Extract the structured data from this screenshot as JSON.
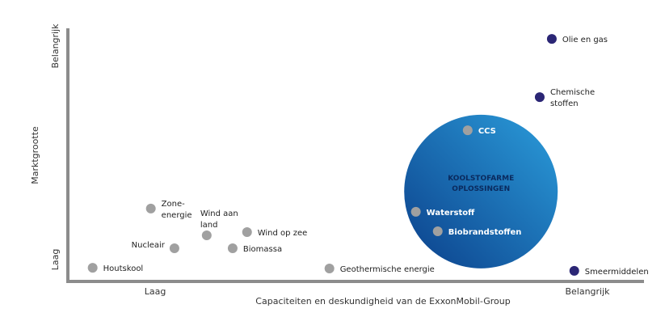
{
  "chart_data": {
    "type": "scatter",
    "title": "",
    "xlabel": "Capaciteiten en deskundigheid van de ExxonMobil-Group",
    "ylabel": "Marktgrootte",
    "x_ticks": {
      "low": "Laag",
      "high": "Belangrijk"
    },
    "y_ticks": {
      "low": "Laag",
      "high": "Belangrijk"
    },
    "xlim": [
      0,
      100
    ],
    "ylim": [
      0,
      100
    ],
    "grid": false,
    "colors": {
      "axis": "#8c8c8c",
      "gray_point": "#a0a0a0",
      "core_point": "#2b2675",
      "bubble_dark": "#0b3f8a",
      "bubble_light": "#2b9ddb",
      "bubble_text": "#0a2a5e",
      "text": "#333333"
    },
    "bubble": {
      "label_lines": [
        "KOOLSTOFARME",
        "OPLOSSINGEN"
      ],
      "cx": 71.7,
      "cy": 35.5
    },
    "points": [
      {
        "label": [
          "Houtskool"
        ],
        "x": 4.3,
        "y": 5.4,
        "group": "other",
        "pos": "right"
      },
      {
        "label": [
          "Zone-",
          "energie"
        ],
        "x": 14.4,
        "y": 28.8,
        "group": "other",
        "pos": "right"
      },
      {
        "label": [
          "Nucleair"
        ],
        "x": 18.5,
        "y": 13.1,
        "group": "other",
        "pos": "left"
      },
      {
        "label": [
          "Wind aan",
          "land"
        ],
        "x": 24.1,
        "y": 18.2,
        "group": "other",
        "pos": "above"
      },
      {
        "label": [
          "Wind op zee"
        ],
        "x": 31.1,
        "y": 19.5,
        "group": "other",
        "pos": "right"
      },
      {
        "label": [
          "Biomassa"
        ],
        "x": 28.6,
        "y": 13.1,
        "group": "other",
        "pos": "right"
      },
      {
        "label": [
          "Geothermische energie"
        ],
        "x": 45.4,
        "y": 5.1,
        "group": "other",
        "pos": "right"
      },
      {
        "label": [
          "CCS"
        ],
        "x": 69.4,
        "y": 59.7,
        "group": "low-carbon",
        "pos": "right"
      },
      {
        "label": [
          "Waterstoff"
        ],
        "x": 60.4,
        "y": 27.5,
        "group": "low-carbon",
        "pos": "right"
      },
      {
        "label": [
          "Biobrandstoffen"
        ],
        "x": 64.2,
        "y": 19.8,
        "group": "low-carbon",
        "pos": "right"
      },
      {
        "label": [
          "Olie en gas"
        ],
        "x": 84.0,
        "y": 95.8,
        "group": "core",
        "pos": "right"
      },
      {
        "label": [
          "Chemische",
          "stoffen"
        ],
        "x": 81.9,
        "y": 72.8,
        "group": "core",
        "pos": "right"
      },
      {
        "label": [
          "Smeermiddelen"
        ],
        "x": 87.9,
        "y": 4.2,
        "group": "core",
        "pos": "right"
      }
    ]
  }
}
